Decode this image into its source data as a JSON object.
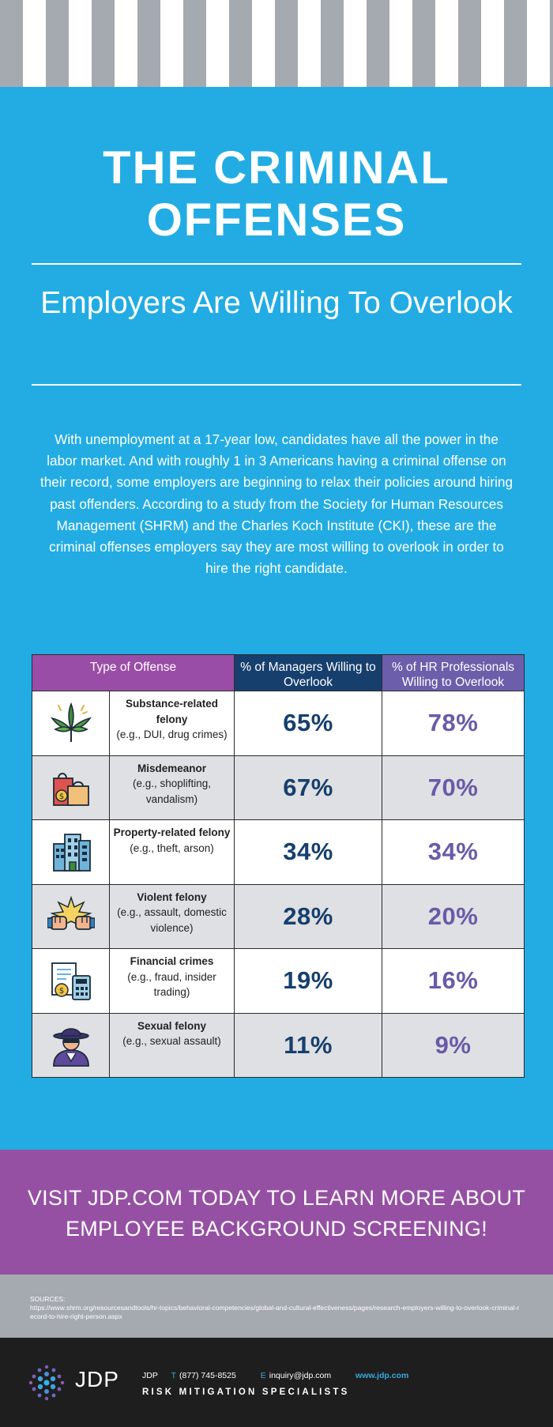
{
  "title": "THE CRIMINAL OFFENSES",
  "subtitle": "Employers Are Willing To Overlook",
  "intro": "With unemployment at a 17-year low, candidates have all the power in the labor market. And with roughly 1 in 3 Americans having a criminal offense on their record, some employers are beginning to relax their policies around hiring past offenders. According to a study from the Society for Human Resources Management (SHRM) and the Charles Koch Institute (CKI), these are the criminal offenses employers say they are most willing to overlook in order to hire the right candidate.",
  "table": {
    "headers": {
      "type": "Type of Offense",
      "managers": "% of Managers Willing to Overlook",
      "hr": "% of HR Professionals Willing to Overlook"
    },
    "rows": [
      {
        "icon": "cannabis-leaf-icon",
        "name": "Substance-related felony",
        "example": "(e.g., DUI, drug crimes)",
        "managers": "65%",
        "hr": "78%"
      },
      {
        "icon": "shopping-bags-icon",
        "name": "Misdemeanor",
        "example": "(e.g., shoplifting, vandalism)",
        "managers": "67%",
        "hr": "70%"
      },
      {
        "icon": "office-building-icon",
        "name": "Property-related felony",
        "example": "(e.g., theft, arson)",
        "managers": "34%",
        "hr": "34%"
      },
      {
        "icon": "fist-bump-icon",
        "name": "Violent felony",
        "example": "(e.g., assault, domestic violence)",
        "managers": "28%",
        "hr": "20%"
      },
      {
        "icon": "calculator-invoice-icon",
        "name": "Financial crimes",
        "example": "(e.g., fraud, insider trading)",
        "managers": "19%",
        "hr": "16%"
      },
      {
        "icon": "hooded-figure-icon",
        "name": "Sexual felony",
        "example": "(e.g., sexual assault)",
        "managers": "11%",
        "hr": "9%"
      }
    ]
  },
  "cta": "VISIT JDP.COM TODAY TO LEARN MORE ABOUT EMPLOYEE BACKGROUND SCREENING!",
  "sources": {
    "label": "SOURCES:",
    "url": "https://www.shrm.org/resourcesandtools/hr-topics/behavioral-competencies/global-and-cultural-effectiveness/pages/research-employers-willing-to-overlook-criminal-record-to-hire-right-person.aspx"
  },
  "footer": {
    "logo": "JDP",
    "company": "JDP",
    "phone_label": "T",
    "phone": "(877) 745-8525",
    "email_label": "E",
    "email": "inquiry@jdp.com",
    "website": "www.jdp.com",
    "tagline": "RISK MITIGATION SPECIALISTS"
  },
  "colors": {
    "blue": "#22ace3",
    "purple": "#9550a3",
    "navy": "#173f6e",
    "violet": "#6a5aa8",
    "gray": "#a5a9b0",
    "dark": "#1e1e1e"
  }
}
